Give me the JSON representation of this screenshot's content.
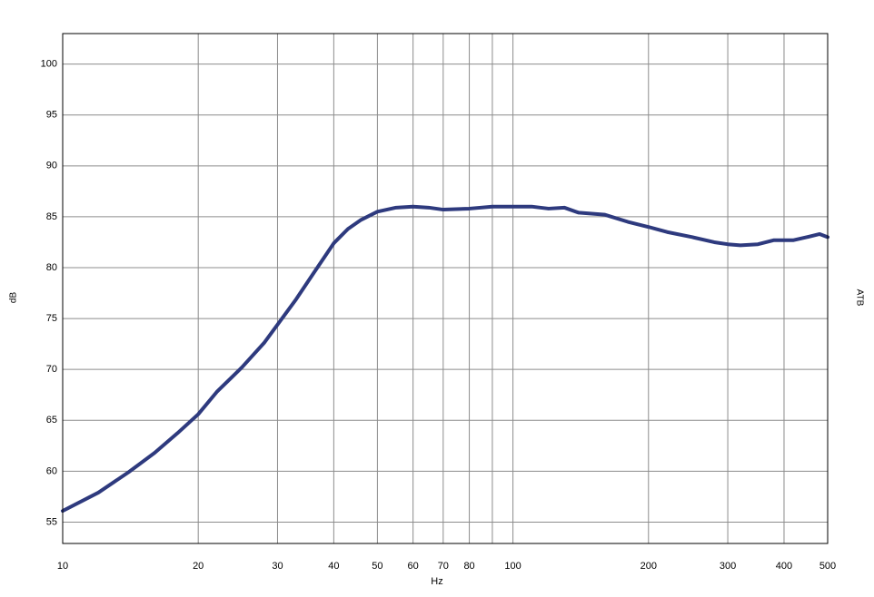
{
  "chart_data": {
    "type": "line",
    "x_label": "Hz",
    "y_label": "dB",
    "y2_label": "ATB",
    "x_scale": "log",
    "x": [
      10,
      12,
      14,
      16,
      18,
      20,
      22,
      25,
      28,
      30,
      33,
      36,
      40,
      43,
      46,
      50,
      55,
      60,
      65,
      70,
      80,
      90,
      100,
      110,
      120,
      130,
      140,
      160,
      180,
      200,
      220,
      250,
      280,
      300,
      320,
      350,
      380,
      420,
      450,
      480,
      500
    ],
    "series": [
      {
        "color": "#2e3a7e",
        "values": [
          56.1,
          57.9,
          59.9,
          61.8,
          63.75,
          65.6,
          67.8,
          70.2,
          72.6,
          74.4,
          76.9,
          79.4,
          82.4,
          83.8,
          84.7,
          85.5,
          85.9,
          86.0,
          85.9,
          85.7,
          85.8,
          86.0,
          86.0,
          86.0,
          85.8,
          85.9,
          85.4,
          85.2,
          84.5,
          84.0,
          83.5,
          83.0,
          82.5,
          82.3,
          82.2,
          82.3,
          82.7,
          82.7,
          83.0,
          83.3,
          83.0
        ]
      }
    ],
    "xlim": [
      10,
      500
    ],
    "xticks": [
      10,
      20,
      30,
      40,
      50,
      60,
      70,
      80,
      {
        "value": 90,
        "label": null
      },
      100,
      200,
      300,
      400,
      500
    ],
    "ylim": [
      52.9,
      103
    ],
    "yticks": [
      55,
      60,
      65,
      70,
      75,
      80,
      85,
      90,
      95,
      100
    ],
    "grid": true
  }
}
